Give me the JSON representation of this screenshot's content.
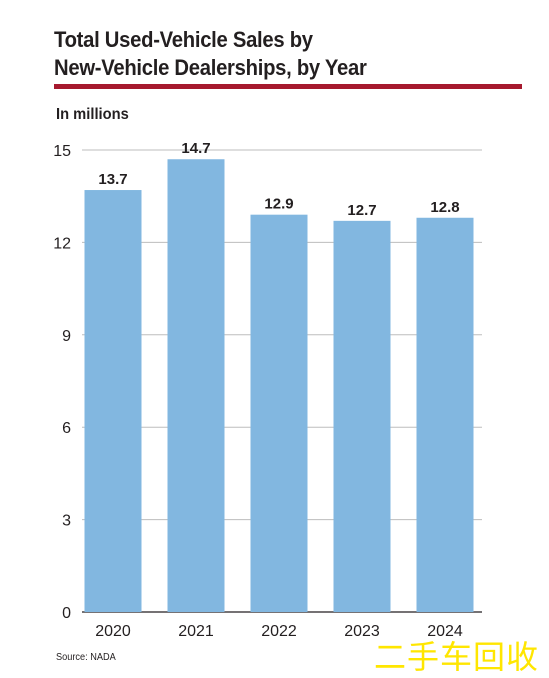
{
  "header": {
    "title_line1": "Total Used-Vehicle Sales by",
    "title_line2": "New-Vehicle Dealerships, by Year",
    "units": "In millions"
  },
  "footer": {
    "source": "Source: NADA"
  },
  "watermark": "二手车回收",
  "colors": {
    "bar": "#82b7e0",
    "rule": "#a6192e",
    "grid": "#bdbdbd",
    "text": "#231f20"
  },
  "chart_data": {
    "type": "bar",
    "title": "Total Used-Vehicle Sales by New-Vehicle Dealerships, by Year",
    "ylabel": "In millions",
    "xlabel": "",
    "categories": [
      "2020",
      "2021",
      "2022",
      "2023",
      "2024"
    ],
    "values": [
      13.7,
      14.7,
      12.9,
      12.7,
      12.8
    ],
    "value_labels": [
      "13.7",
      "14.7",
      "12.9",
      "12.7",
      "12.8"
    ],
    "ylim": [
      0,
      15
    ],
    "yticks": [
      0,
      3,
      6,
      9,
      12,
      15
    ],
    "grid": true,
    "legend": "none"
  }
}
